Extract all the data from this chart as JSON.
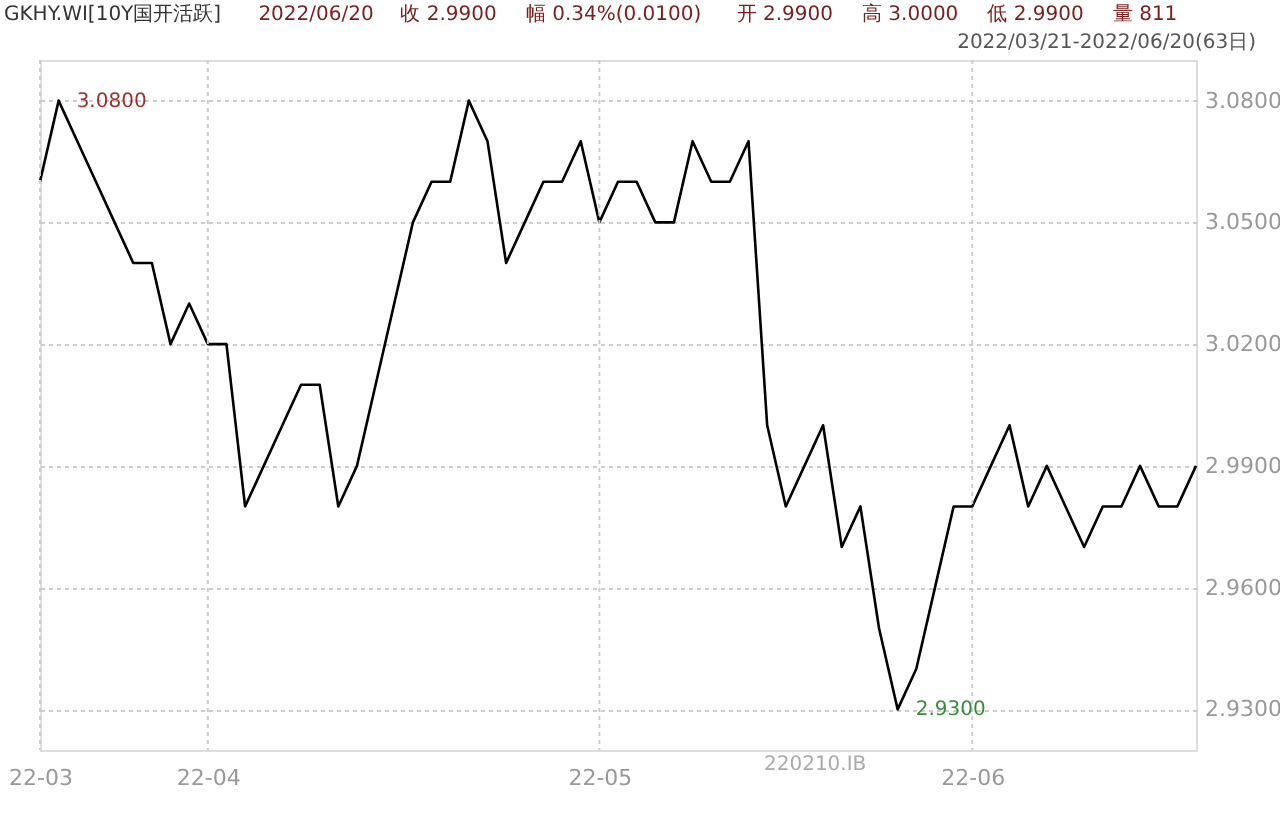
{
  "chart_data": {
    "type": "line",
    "title": "GKHY.WI[10Y国开活跃]",
    "subtitle": "2022/03/21-2022/06/20(63日)",
    "categories": [
      "22-03",
      null,
      null,
      null,
      null,
      null,
      null,
      null,
      null,
      "22-04",
      null,
      null,
      null,
      null,
      null,
      null,
      null,
      null,
      null,
      null,
      null,
      null,
      null,
      null,
      null,
      null,
      null,
      null,
      null,
      null,
      "22-05",
      null,
      null,
      null,
      null,
      null,
      null,
      null,
      null,
      null,
      null,
      null,
      null,
      null,
      null,
      null,
      null,
      null,
      null,
      null,
      "22-06",
      null,
      null,
      null,
      null,
      null,
      null,
      null,
      null,
      null,
      null,
      null,
      null
    ],
    "series": [
      {
        "color": "#000000",
        "values": [
          3.06,
          3.08,
          3.07,
          3.06,
          3.05,
          3.04,
          3.04,
          3.02,
          3.03,
          3.02,
          3.02,
          2.98,
          2.99,
          3.0,
          3.01,
          3.01,
          2.98,
          2.99,
          3.01,
          3.03,
          3.05,
          3.06,
          3.06,
          3.08,
          3.07,
          3.04,
          3.05,
          3.06,
          3.06,
          3.07,
          3.05,
          3.06,
          3.06,
          3.05,
          3.05,
          3.07,
          3.06,
          3.06,
          3.07,
          3.0,
          2.98,
          2.99,
          3.0,
          2.97,
          2.98,
          2.95,
          2.93,
          2.94,
          2.96,
          2.98,
          2.98,
          2.99,
          3.0,
          2.98,
          2.99,
          2.98,
          2.97,
          2.98,
          2.98,
          2.99,
          2.98,
          2.98,
          2.99
        ]
      }
    ],
    "ylim": [
      2.92,
      3.09
    ],
    "yticks": [
      {
        "value": 2.93,
        "label": "2.9300"
      },
      {
        "value": 2.96,
        "label": "2.9600"
      },
      {
        "value": 2.99,
        "label": "2.9900"
      },
      {
        "value": 3.02,
        "label": "3.0200"
      },
      {
        "value": 3.05,
        "label": "3.0500"
      },
      {
        "value": 3.08,
        "label": "3.0800"
      }
    ],
    "grid": true,
    "marker": "none",
    "line_style": "solid",
    "annotations": [
      "2022/06/20",
      "收 2.9900",
      "幅 0.34%(0.0100)",
      "开 2.9900",
      "高 3.0000",
      "低 2.9900",
      "量 811",
      "220210.IB",
      "3.0800",
      "2.9300"
    ]
  }
}
